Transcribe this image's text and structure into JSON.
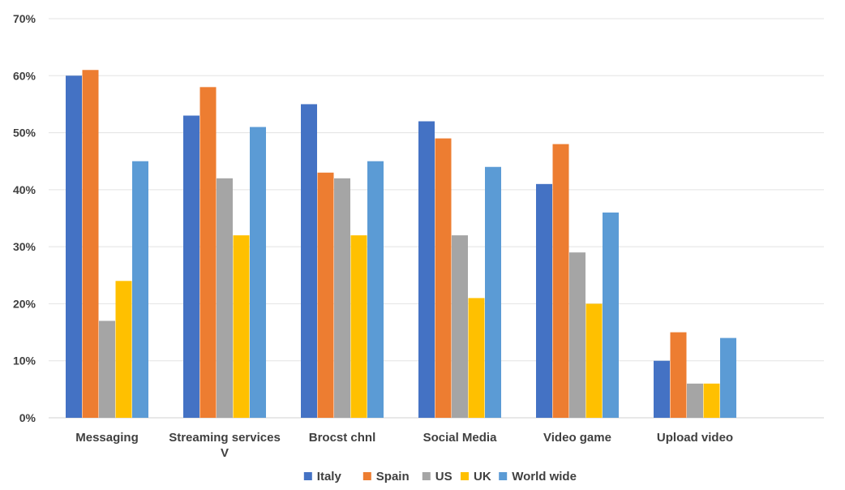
{
  "chart_data": {
    "type": "bar",
    "title": "",
    "xlabel": "",
    "ylabel": "",
    "ylim": [
      0,
      70
    ],
    "y_ticks": [
      "0%",
      "10%",
      "20%",
      "30%",
      "40%",
      "50%",
      "60%",
      "70%"
    ],
    "y_tick_values": [
      0,
      10,
      20,
      30,
      40,
      50,
      60,
      70
    ],
    "grid": true,
    "legend_position": "bottom",
    "categories": [
      [
        "Messaging"
      ],
      [
        "Streaming services",
        "V"
      ],
      [
        "Brocst chnl"
      ],
      [
        "Social Media"
      ],
      [
        "Video game"
      ],
      [
        "Upload video"
      ]
    ],
    "series": [
      {
        "name": "Italy",
        "color": "#4472C4",
        "values": [
          60,
          53,
          55,
          52,
          41,
          10
        ]
      },
      {
        "name": "Spain",
        "color": "#ED7D31",
        "values": [
          61,
          58,
          43,
          49,
          48,
          15
        ]
      },
      {
        "name": "US",
        "color": "#A5A5A5",
        "values": [
          17,
          42,
          42,
          32,
          29,
          6
        ]
      },
      {
        "name": "UK",
        "color": "#FFC000",
        "values": [
          24,
          32,
          32,
          21,
          20,
          6
        ]
      },
      {
        "name": "World wide",
        "color": "#5B9BD5",
        "values": [
          45,
          51,
          45,
          44,
          36,
          14
        ]
      }
    ]
  }
}
